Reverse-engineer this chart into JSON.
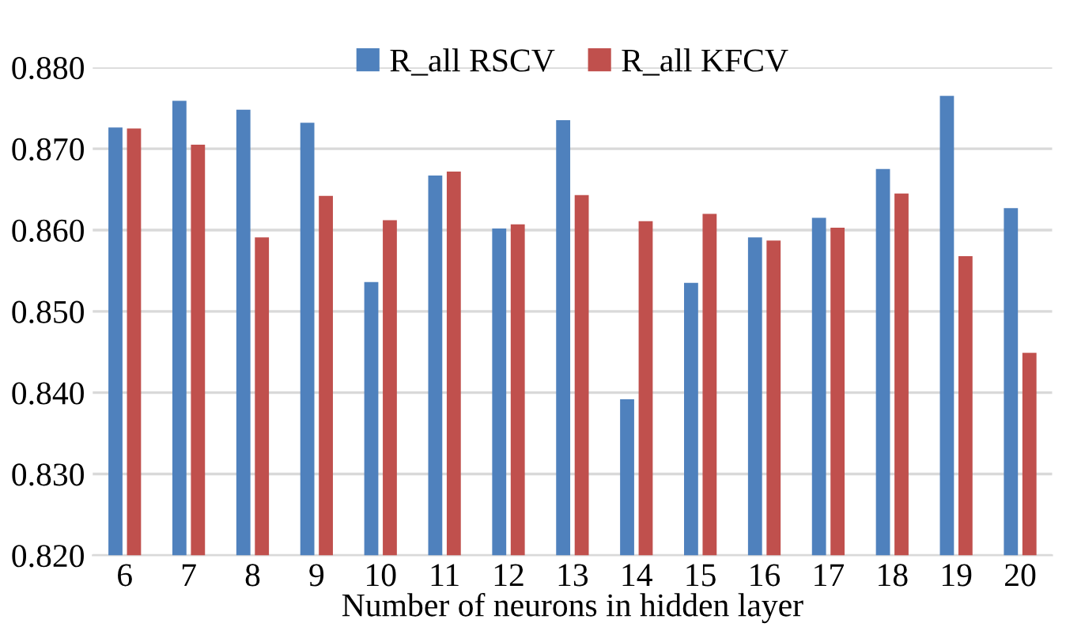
{
  "chart_data": {
    "type": "bar",
    "xlabel": "Number of neurons in hidden layer",
    "categories": [
      "6",
      "7",
      "8",
      "9",
      "10",
      "11",
      "12",
      "13",
      "14",
      "15",
      "16",
      "17",
      "18",
      "19",
      "20"
    ],
    "series": [
      {
        "name": "R_all RSCV",
        "color": "#4f81bd",
        "values": [
          0.8726,
          0.8759,
          0.8748,
          0.8732,
          0.8536,
          0.8667,
          0.8602,
          0.8735,
          0.8392,
          0.8535,
          0.8591,
          0.8615,
          0.8675,
          0.8765,
          0.8627
        ]
      },
      {
        "name": "R_all KFCV",
        "color": "#c0504d",
        "values": [
          0.8725,
          0.8705,
          0.8591,
          0.8642,
          0.8612,
          0.8672,
          0.8607,
          0.8643,
          0.8611,
          0.862,
          0.8587,
          0.8603,
          0.8645,
          0.8568,
          0.8449
        ]
      }
    ],
    "ylim": [
      0.82,
      0.88
    ],
    "yticks": [
      {
        "value": 0.82,
        "label": "0.820"
      },
      {
        "value": 0.83,
        "label": "0.830"
      },
      {
        "value": 0.84,
        "label": "0.840"
      },
      {
        "value": 0.85,
        "label": "0.850"
      },
      {
        "value": 0.86,
        "label": "0.860"
      },
      {
        "value": 0.87,
        "label": "0.870"
      },
      {
        "value": 0.88,
        "label": "0.880"
      }
    ],
    "grid": "y",
    "legend": "top"
  }
}
